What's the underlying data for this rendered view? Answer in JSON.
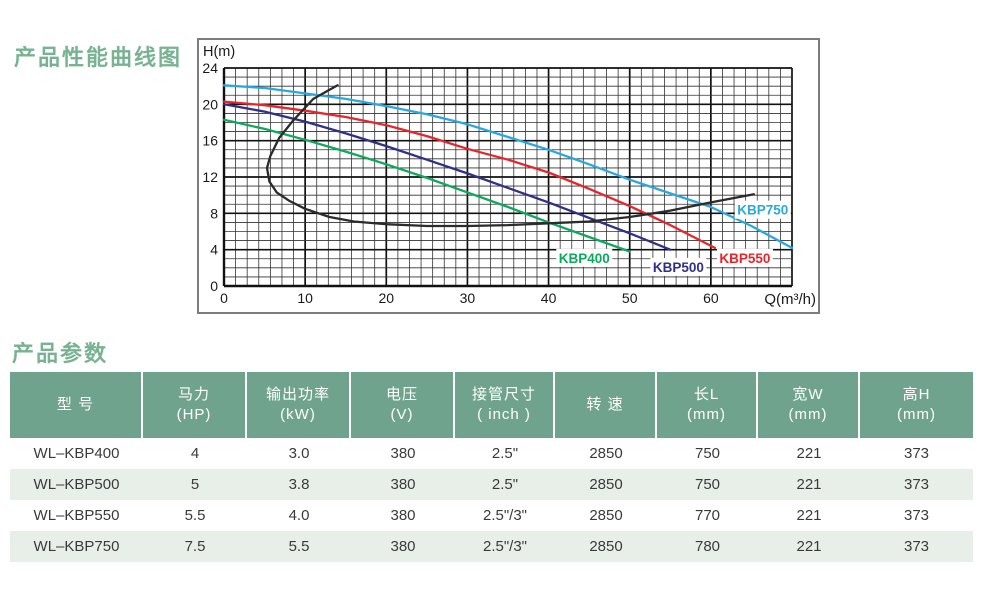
{
  "page": {
    "section1_title": "产品性能曲线图",
    "section2_title": "产品参数"
  },
  "chart_data": {
    "type": "line",
    "title": "产品性能曲线图",
    "xlabel": "Q(m³/h)",
    "ylabel": "H(m)",
    "xlim": [
      0,
      70
    ],
    "ylim": [
      0,
      24
    ],
    "x_ticks": [
      0,
      10,
      20,
      30,
      40,
      50,
      60
    ],
    "y_ticks": [
      24,
      20,
      16,
      12,
      8,
      4,
      0
    ],
    "grid": {
      "x_divisions": 49,
      "y_divisions": 24,
      "x_major_every": 7,
      "y_major_every": 4,
      "minor_color": "#333333",
      "major_color": "#111111"
    },
    "legend_position": "labels-on-plot",
    "series": [
      {
        "name": "KBP750",
        "color": "#29a8e0",
        "label_pos": {
          "q": 66.4,
          "h": 8.4
        },
        "points": [
          [
            0,
            22.1
          ],
          [
            5,
            21.8
          ],
          [
            10,
            21.2
          ],
          [
            15,
            20.6
          ],
          [
            20,
            19.8
          ],
          [
            25,
            18.9
          ],
          [
            30,
            17.8
          ],
          [
            35,
            16.4
          ],
          [
            40,
            15.0
          ],
          [
            45,
            13.4
          ],
          [
            50,
            11.7
          ],
          [
            55,
            10.2
          ],
          [
            60,
            8.7
          ],
          [
            65,
            6.6
          ],
          [
            70,
            4.2
          ]
        ]
      },
      {
        "name": "KBP550",
        "color": "#e5262c",
        "label_pos": {
          "q": 64.2,
          "h": 3.1
        },
        "points": [
          [
            0,
            20.3
          ],
          [
            5,
            19.9
          ],
          [
            10,
            19.3
          ],
          [
            15,
            18.6
          ],
          [
            20,
            17.7
          ],
          [
            25,
            16.5
          ],
          [
            30,
            15.1
          ],
          [
            35,
            13.9
          ],
          [
            40,
            12.5
          ],
          [
            45,
            10.7
          ],
          [
            50,
            8.8
          ],
          [
            55,
            6.7
          ],
          [
            60.5,
            4.2
          ]
        ]
      },
      {
        "name": "KBP500",
        "color": "#30308a",
        "label_pos": {
          "q": 56.0,
          "h": 2.1
        },
        "points": [
          [
            0,
            20.0
          ],
          [
            5,
            19.2
          ],
          [
            10,
            18.1
          ],
          [
            15,
            16.8
          ],
          [
            20,
            15.4
          ],
          [
            25,
            13.9
          ],
          [
            30,
            12.4
          ],
          [
            35,
            10.8
          ],
          [
            40,
            9.2
          ],
          [
            45,
            7.5
          ],
          [
            50,
            5.8
          ],
          [
            55,
            4.0
          ]
        ]
      },
      {
        "name": "KBP400",
        "color": "#0ea85e",
        "label_pos": {
          "q": 44.4,
          "h": 3.1
        },
        "points": [
          [
            0,
            18.3
          ],
          [
            5,
            17.3
          ],
          [
            10,
            16.1
          ],
          [
            15,
            14.8
          ],
          [
            20,
            13.4
          ],
          [
            25,
            11.9
          ],
          [
            30,
            10.3
          ],
          [
            35,
            8.7
          ],
          [
            40,
            7.0
          ],
          [
            45,
            5.4
          ],
          [
            50,
            3.8
          ]
        ]
      },
      {
        "name": "operating-range-envelope",
        "color": "#2b2b2b",
        "label_pos": null,
        "points": [
          [
            14,
            22.1
          ],
          [
            11,
            20.6
          ],
          [
            8.5,
            18.2
          ],
          [
            6.8,
            16.3
          ],
          [
            5.7,
            14.3
          ],
          [
            5.3,
            13.0
          ],
          [
            5.6,
            11.5
          ],
          [
            6.5,
            10.3
          ],
          [
            8,
            9.4
          ],
          [
            10,
            8.5
          ],
          [
            13,
            7.6
          ],
          [
            16,
            7.1
          ],
          [
            20,
            6.8
          ],
          [
            25,
            6.6
          ],
          [
            30,
            6.6
          ],
          [
            35,
            6.7
          ],
          [
            40,
            6.9
          ],
          [
            45,
            7.1
          ],
          [
            50,
            7.6
          ],
          [
            55,
            8.3
          ],
          [
            60,
            9.2
          ],
          [
            65.3,
            10.1
          ]
        ]
      }
    ]
  },
  "table": {
    "columns": [
      {
        "label": "型  号",
        "unit": ""
      },
      {
        "label": "马力",
        "unit": "(HP)"
      },
      {
        "label": "输出功率",
        "unit": "(kW)"
      },
      {
        "label": "电压",
        "unit": "(V)"
      },
      {
        "label": "接管尺寸",
        "unit": "( inch )"
      },
      {
        "label": "转 速",
        "unit": ""
      },
      {
        "label": "长L",
        "unit": "(mm)"
      },
      {
        "label": "宽W",
        "unit": "(mm)"
      },
      {
        "label": "高H",
        "unit": "(mm)"
      }
    ],
    "rows": [
      [
        "WL–KBP400",
        "4",
        "3.0",
        "380",
        "2.5\"",
        "2850",
        "750",
        "221",
        "373"
      ],
      [
        "WL–KBP500",
        "5",
        "3.8",
        "380",
        "2.5\"",
        "2850",
        "750",
        "221",
        "373"
      ],
      [
        "WL–KBP550",
        "5.5",
        "4.0",
        "380",
        "2.5\"/3\"",
        "2850",
        "770",
        "221",
        "373"
      ],
      [
        "WL–KBP750",
        "7.5",
        "5.5",
        "380",
        "2.5\"/3\"",
        "2850",
        "780",
        "221",
        "373"
      ]
    ]
  },
  "colors": {
    "title_green": "#79b293",
    "table_header_bg": "#70a38d",
    "table_alt_row_bg": "#e8efe9",
    "chart_border": "#7c7c7c",
    "grid_line": "#333333",
    "text": "#3a3a3a"
  }
}
